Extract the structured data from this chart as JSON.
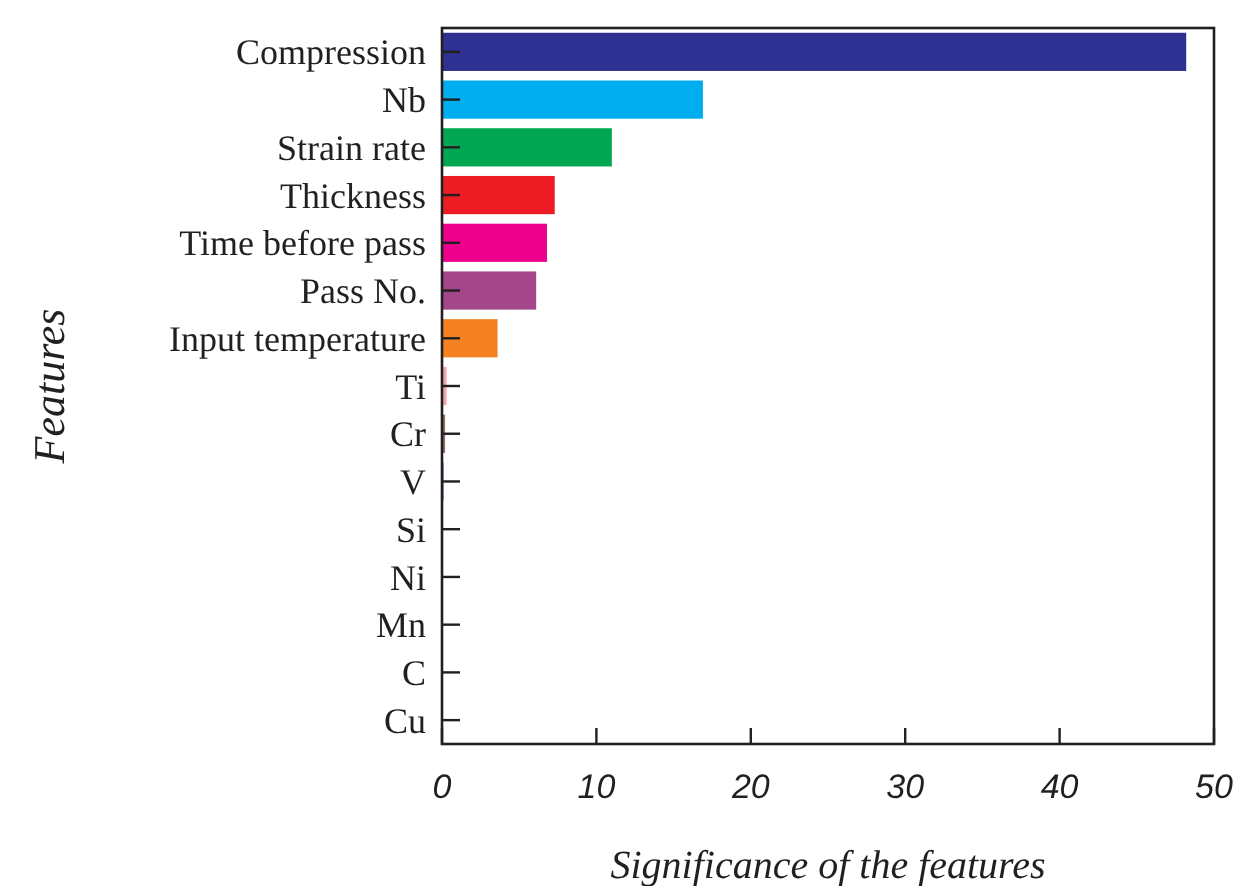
{
  "chart_data": {
    "type": "bar",
    "orientation": "horizontal",
    "xlabel": "Significance of the features",
    "ylabel": "Features",
    "categories": [
      "Compression",
      "Nb",
      "Strain rate",
      "Thickness",
      "Time before pass",
      "Pass No.",
      "Input temperature",
      "Ti",
      "Cr",
      "V",
      "Si",
      "Ni",
      "Mn",
      "C",
      "Cu"
    ],
    "values": [
      48.2,
      16.9,
      11.0,
      7.3,
      6.8,
      6.1,
      3.6,
      0.3,
      0.2,
      0.1,
      0,
      0,
      0,
      0,
      0
    ],
    "colors": [
      "#2e3192",
      "#00aeef",
      "#00a651",
      "#ed1c24",
      "#ec008c",
      "#a3478a",
      "#f58220",
      "#f4a6b0",
      "#8c6e63",
      "#6f5fb5",
      "#808080",
      "#808080",
      "#808080",
      "#808080",
      "#808080"
    ],
    "xlim": [
      0,
      50
    ],
    "xticks": [
      0,
      10,
      20,
      30,
      40,
      50
    ]
  }
}
